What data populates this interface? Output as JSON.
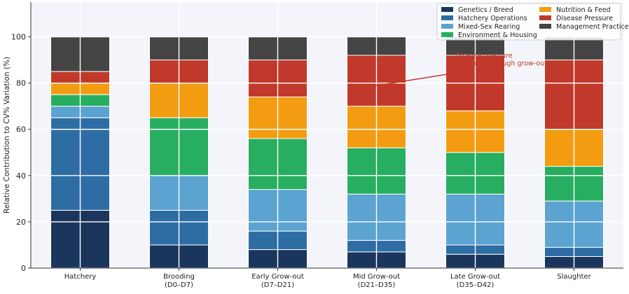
{
  "chart_data": {
    "type": "bar",
    "stacked": true,
    "title": "",
    "ylabel": "Relative Contribution to CV% Variation (%)",
    "xlabel": "",
    "ylim": [
      0,
      115
    ],
    "yticks": [
      0,
      20,
      40,
      60,
      80,
      100
    ],
    "grid": true,
    "legend_position": "top-right",
    "categories": [
      [
        "Hatchery"
      ],
      [
        "Brooding",
        "(D0–D7)"
      ],
      [
        "Early Grow-out",
        "(D7–D21)"
      ],
      [
        "Mid Grow-out",
        "(D21–D35)"
      ],
      [
        "Late Grow-out",
        "(D35–D42)"
      ],
      [
        "Slaughter"
      ]
    ],
    "series": [
      {
        "name": "Genetics / Breed",
        "color": "#1b365d",
        "values": [
          25,
          10,
          8,
          7,
          6,
          5
        ]
      },
      {
        "name": "Hatchery Operations",
        "color": "#2e6da4",
        "values": [
          40,
          15,
          8,
          5,
          4,
          4
        ]
      },
      {
        "name": "Mixed-Sex Rearing",
        "color": "#5ba3d0",
        "values": [
          5,
          15,
          18,
          20,
          22,
          20
        ]
      },
      {
        "name": "Environment & Housing",
        "color": "#27ae60",
        "values": [
          5,
          25,
          22,
          20,
          18,
          15
        ]
      },
      {
        "name": "Nutrition & Feed",
        "color": "#f39c12",
        "values": [
          5,
          15,
          18,
          18,
          18,
          16
        ]
      },
      {
        "name": "Disease Pressure",
        "color": "#c0392b",
        "values": [
          5,
          10,
          16,
          22,
          24,
          30
        ]
      },
      {
        "name": "Management Practices",
        "color": "#444444",
        "values": [
          15,
          10,
          10,
          8,
          8,
          10
        ]
      }
    ],
    "annotation": {
      "text_lines": [
        "Disease pressure",
        "escalates through grow-out"
      ],
      "target_category": 3,
      "target_value": 77,
      "text_at_category": 3.8,
      "text_at_value": 91,
      "color": "#c0392b"
    },
    "colors": {
      "background": "#f4f5fa",
      "grid": "#ffffff",
      "axis": "#333333",
      "text": "#222222"
    }
  }
}
